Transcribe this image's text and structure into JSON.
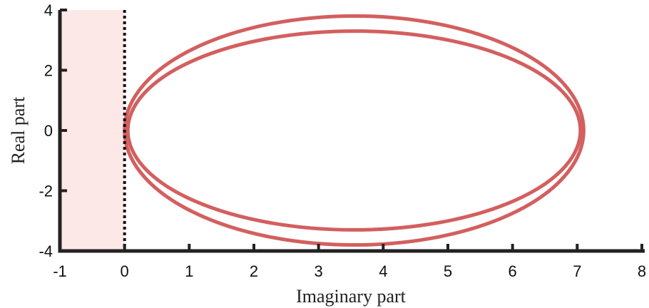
{
  "chart_data": {
    "type": "line",
    "title": "",
    "xlabel": "Imaginary part",
    "ylabel": "Real part",
    "xlim": [
      -1,
      8
    ],
    "ylim": [
      -4,
      4
    ],
    "xticks": [
      "-1",
      "0",
      "1",
      "2",
      "3",
      "4",
      "5",
      "6",
      "7",
      "8"
    ],
    "yticks": [
      "-4",
      "-2",
      "0",
      "2",
      "4"
    ],
    "grid": false,
    "shaded_region": {
      "x": [
        -1,
        0
      ],
      "color": "#fde8e8"
    },
    "reference_line": {
      "x": 0,
      "style": "dotted",
      "color": "#111111"
    },
    "series": [
      {
        "shape": "ellipse",
        "center": [
          3.55,
          0
        ],
        "x_range": [
          0.0,
          7.1
        ],
        "y_range": [
          -3.8,
          3.8
        ],
        "color": "#d35f5f"
      },
      {
        "shape": "ellipse",
        "center": [
          3.55,
          0
        ],
        "x_range": [
          0.05,
          7.05
        ],
        "y_range": [
          -3.3,
          3.3
        ],
        "color": "#d35f5f"
      }
    ]
  }
}
